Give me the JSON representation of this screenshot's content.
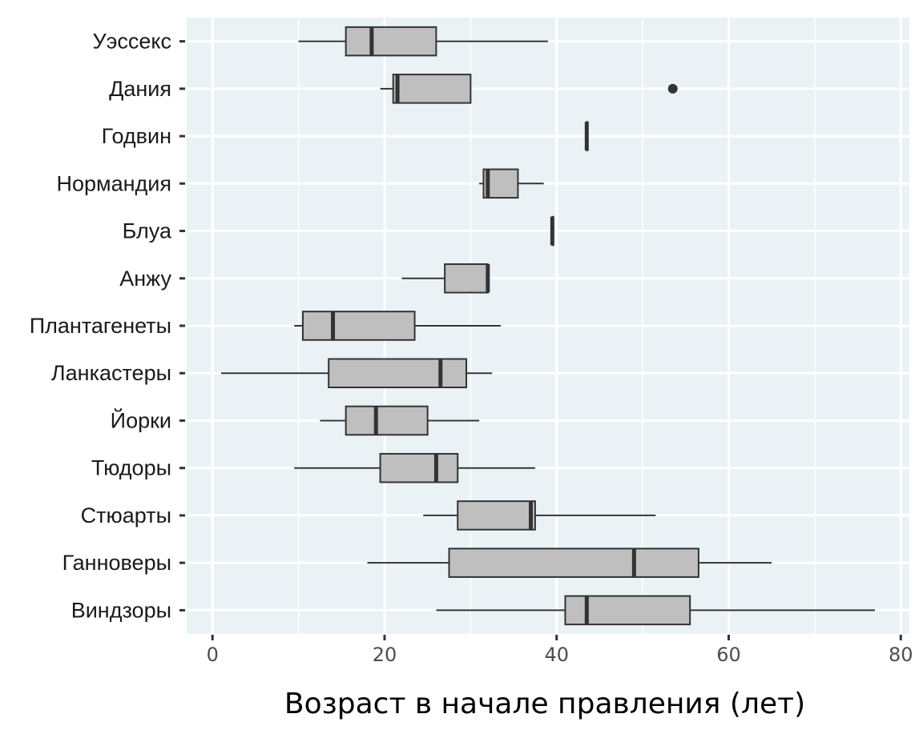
{
  "chart_data": {
    "type": "boxplot",
    "orientation": "horizontal",
    "xlabel": "Возраст в начале правления (лет)",
    "xlim": [
      -3,
      81
    ],
    "xticks": [
      0,
      20,
      40,
      60,
      80
    ],
    "grid": true,
    "colors": {
      "panel": "#ebf2f5",
      "grid": "#ffffff",
      "box_fill": "#bfbfbf",
      "box_stroke": "#333333"
    },
    "categories": [
      "Уэссекс",
      "Дания",
      "Годвин",
      "Нормандия",
      "Блуа",
      "Анжу",
      "Плантагенеты",
      "Ланкастеры",
      "Йорки",
      "Тюдоры",
      "Стюарты",
      "Ганноверы",
      "Виндзоры"
    ],
    "boxes": [
      {
        "name": "Уэссекс",
        "min": 10,
        "q1": 15.5,
        "median": 18.5,
        "q3": 26,
        "max": 39,
        "outliers": []
      },
      {
        "name": "Дания",
        "min": 19.5,
        "q1": 21,
        "median": 21.5,
        "q3": 30,
        "max": 30,
        "outliers": [
          53.5
        ]
      },
      {
        "name": "Годвин",
        "min": 43.5,
        "q1": 43.5,
        "median": 43.5,
        "q3": 43.5,
        "max": 43.5,
        "outliers": []
      },
      {
        "name": "Нормандия",
        "min": 31,
        "q1": 31.5,
        "median": 32,
        "q3": 35.5,
        "max": 38.5,
        "outliers": []
      },
      {
        "name": "Блуа",
        "min": 39.5,
        "q1": 39.5,
        "median": 39.5,
        "q3": 39.5,
        "max": 39.5,
        "outliers": []
      },
      {
        "name": "Анжу",
        "min": 22,
        "q1": 27,
        "median": 32,
        "q3": 32,
        "max": 32,
        "outliers": []
      },
      {
        "name": "Плантагенеты",
        "min": 9.5,
        "q1": 10.5,
        "median": 14,
        "q3": 23.5,
        "max": 33.5,
        "outliers": []
      },
      {
        "name": "Ланкастеры",
        "min": 1,
        "q1": 13.5,
        "median": 26.5,
        "q3": 29.5,
        "max": 32.5,
        "outliers": []
      },
      {
        "name": "Йорки",
        "min": 12.5,
        "q1": 15.5,
        "median": 19,
        "q3": 25,
        "max": 31,
        "outliers": []
      },
      {
        "name": "Тюдоры",
        "min": 9.5,
        "q1": 19.5,
        "median": 26,
        "q3": 28.5,
        "max": 37.5,
        "outliers": []
      },
      {
        "name": "Стюарты",
        "min": 24.5,
        "q1": 28.5,
        "median": 37,
        "q3": 37.5,
        "max": 51.5,
        "outliers": []
      },
      {
        "name": "Ганноверы",
        "min": 18,
        "q1": 27.5,
        "median": 49,
        "q3": 56.5,
        "max": 65,
        "outliers": []
      },
      {
        "name": "Виндзоры",
        "min": 26,
        "q1": 41,
        "median": 43.5,
        "q3": 55.5,
        "max": 77,
        "outliers": []
      }
    ]
  }
}
